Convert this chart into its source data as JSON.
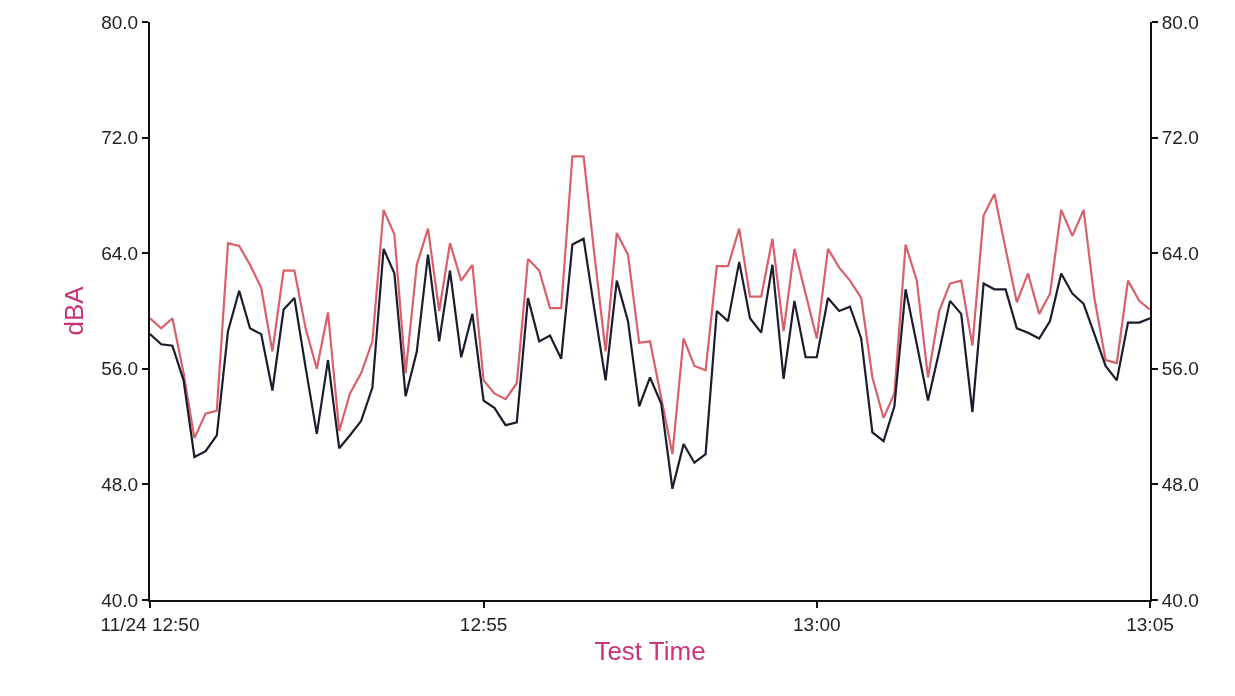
{
  "chart_data": {
    "type": "line",
    "xlabel": "Test Time",
    "ylabel": "dBA",
    "x": [
      12.8333,
      12.8361,
      12.8389,
      12.8417,
      12.8444,
      12.8472,
      12.85,
      12.8528,
      12.8556,
      12.8583,
      12.8611,
      12.8639,
      12.8667,
      12.8694,
      12.8722,
      12.875,
      12.8778,
      12.8806,
      12.8833,
      12.8861,
      12.8889,
      12.8917,
      12.8944,
      12.8972,
      12.9,
      12.9028,
      12.9056,
      12.9083,
      12.9111,
      12.9139,
      12.9167,
      12.9194,
      12.9222,
      12.925,
      12.9278,
      12.9306,
      12.9333,
      12.9361,
      12.9389,
      12.9417,
      12.9444,
      12.9472,
      12.95,
      12.9528,
      12.9556,
      12.9583,
      12.9611,
      12.9639,
      12.9667,
      12.9694,
      12.9722,
      12.975,
      12.9778,
      12.9806,
      12.9833,
      12.9861,
      12.9889,
      12.9917,
      12.9944,
      12.9972,
      13.0,
      13.0028,
      13.0056,
      13.0083,
      13.0111,
      13.0139,
      13.0167,
      13.0194,
      13.0222,
      13.025,
      13.0278,
      13.0306,
      13.0333,
      13.0361,
      13.0389,
      13.0417,
      13.0444,
      13.0472,
      13.05,
      13.0528,
      13.0556,
      13.0583,
      13.0611,
      13.0639,
      13.0667,
      13.0694,
      13.0722,
      13.075,
      13.0778,
      13.0806,
      13.0833
    ],
    "series": [
      {
        "color": "#d9606a",
        "values": [
          59.5,
          58.8,
          59.5,
          55.7,
          51.2,
          52.9,
          53.1,
          64.7,
          64.5,
          63.2,
          61.6,
          57.2,
          62.8,
          62.8,
          58.8,
          56.0,
          59.9,
          51.7,
          54.3,
          55.7,
          57.9,
          67.0,
          65.3,
          55.7,
          63.2,
          65.7,
          60.0,
          64.7,
          62.1,
          63.2,
          55.2,
          54.3,
          53.9,
          55.0,
          63.6,
          62.8,
          60.2,
          60.2,
          70.7,
          70.7,
          63.9,
          57.2,
          65.4,
          63.9,
          57.8,
          57.9,
          54.0,
          50.1,
          58.1,
          56.2,
          55.9,
          63.1,
          63.1,
          65.7,
          61.0,
          61.0,
          65.0,
          58.6,
          64.3,
          61.2,
          58.1,
          64.3,
          63.0,
          62.1,
          60.9,
          55.4,
          52.6,
          54.3,
          64.6,
          62.1,
          55.4,
          60.0,
          61.9,
          62.1,
          57.6,
          66.6,
          68.1,
          64.3,
          60.6,
          62.6,
          59.8,
          61.2,
          67.0,
          65.2,
          67.0,
          60.9,
          56.6,
          56.4,
          62.1,
          60.7,
          60.1
        ]
      },
      {
        "color": "#1c1c2c",
        "values": [
          58.4,
          57.7,
          57.6,
          55.2,
          49.9,
          50.3,
          51.4,
          58.6,
          61.4,
          58.8,
          58.4,
          54.5,
          60.1,
          60.9,
          56.1,
          51.5,
          56.6,
          50.5,
          51.4,
          52.4,
          54.7,
          64.3,
          62.6,
          54.1,
          57.2,
          63.9,
          57.9,
          62.8,
          56.8,
          59.8,
          53.8,
          53.3,
          52.1,
          52.3,
          60.9,
          57.9,
          58.3,
          56.7,
          64.6,
          65.0,
          60.1,
          55.2,
          62.1,
          59.3,
          53.4,
          55.4,
          53.6,
          47.7,
          50.8,
          49.5,
          50.1,
          60.0,
          59.3,
          63.4,
          59.5,
          58.5,
          63.2,
          55.3,
          60.7,
          56.8,
          56.8,
          60.9,
          60.0,
          60.3,
          58.1,
          51.6,
          51.0,
          53.4,
          61.5,
          57.7,
          53.8,
          57.2,
          60.7,
          59.8,
          53.0,
          61.9,
          61.5,
          61.5,
          58.8,
          58.5,
          58.1,
          59.3,
          62.6,
          61.2,
          60.5,
          58.4,
          56.2,
          55.2,
          59.2,
          59.2,
          59.5
        ]
      }
    ],
    "xlim": [
      12.8333,
      13.0833
    ],
    "xticks": [
      {
        "value": 12.8333,
        "label": "11/24 12:50"
      },
      {
        "value": 12.9167,
        "label": "12:55"
      },
      {
        "value": 13.0,
        "label": "13:00"
      },
      {
        "value": 13.0833,
        "label": "13:05"
      }
    ],
    "ylim": [
      40,
      80
    ],
    "yticks": [
      {
        "value": 40,
        "label": "40.0"
      },
      {
        "value": 48,
        "label": "48.0"
      },
      {
        "value": 56,
        "label": "56.0"
      },
      {
        "value": 64,
        "label": "64.0"
      },
      {
        "value": 72,
        "label": "72.0"
      },
      {
        "value": 80,
        "label": "80.0"
      }
    ],
    "y2lim": [
      40,
      80
    ],
    "y2ticks": [
      {
        "value": 40,
        "label": "40.0"
      },
      {
        "value": 48,
        "label": "48.0"
      },
      {
        "value": 56,
        "label": "56.0"
      },
      {
        "value": 64,
        "label": "64.0"
      },
      {
        "value": 72,
        "label": "72.0"
      },
      {
        "value": 80,
        "label": "80.0"
      }
    ],
    "marker": "none",
    "line_style": "solid"
  }
}
